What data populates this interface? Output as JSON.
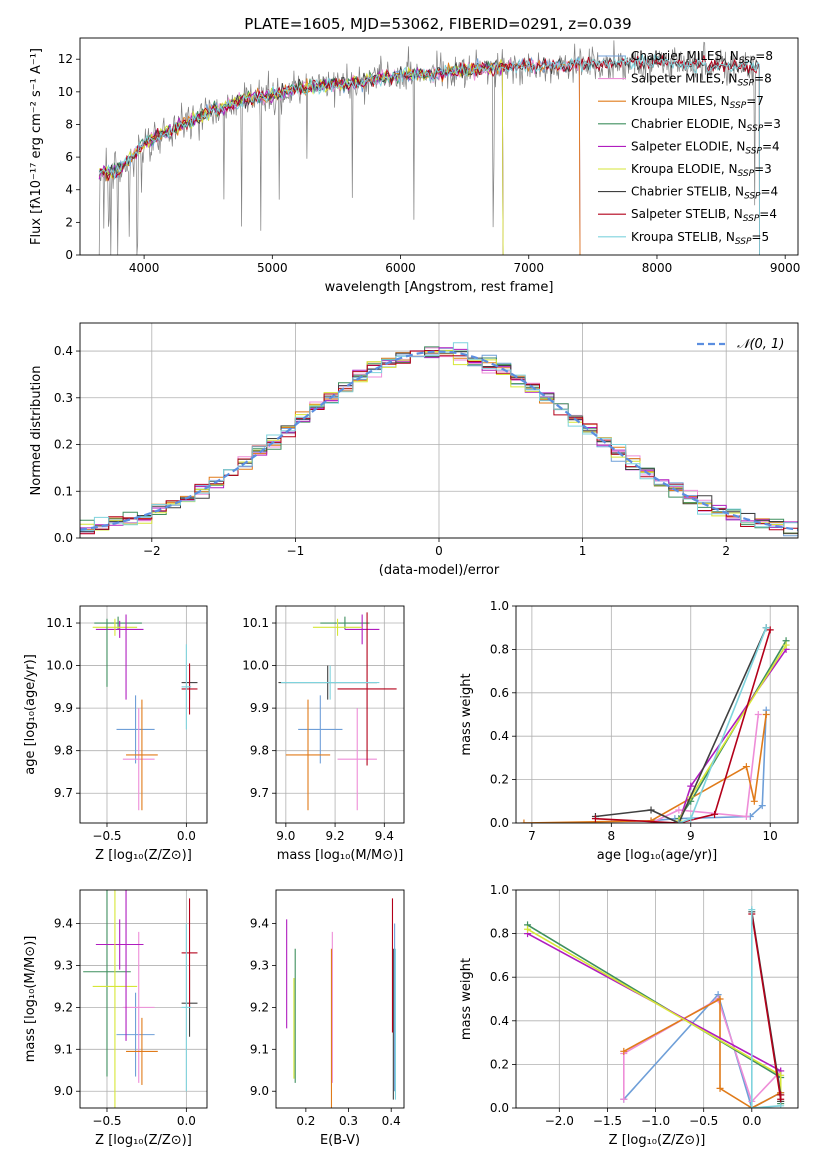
{
  "figure": {
    "title": "PLATE=1605, MJD=53062, FIBERID=0291, z=0.039"
  },
  "chart_data": [
    {
      "id": "spectrum",
      "type": "line",
      "xlabel": "wavelength [Angstrom, rest frame]",
      "ylabel": "Flux [fλ10⁻¹⁷ erg cm⁻² s⁻¹ A⁻¹]",
      "xlim": [
        3500,
        9100
      ],
      "ylim": [
        0,
        13.3
      ],
      "xticks": [
        4000,
        5000,
        6000,
        7000,
        8000,
        9000
      ],
      "yticks": [
        0,
        2,
        4,
        6,
        8,
        10,
        12
      ],
      "grid": false,
      "legend_position": "top-right",
      "data_envelope": {
        "x": [
          3650,
          3800,
          4000,
          4200,
          4400,
          4600,
          4800,
          5000,
          5200,
          5400,
          5600,
          5800,
          6000,
          6200,
          6400,
          6600,
          6800,
          7000,
          7200,
          7400,
          7600,
          7800,
          8000,
          8200,
          8400,
          8600,
          8800
        ],
        "y": [
          5.0,
          5.2,
          6.8,
          7.6,
          8.4,
          9.0,
          9.6,
          9.8,
          10.2,
          10.4,
          10.5,
          10.8,
          11.0,
          11.1,
          11.2,
          11.4,
          11.5,
          11.6,
          11.6,
          11.7,
          11.7,
          11.8,
          11.8,
          11.7,
          11.6,
          11.6,
          11.5
        ]
      },
      "series": [
        {
          "name": "Chabrier MILES, N_SSP=8",
          "label_main": "Chabrier MILES, N",
          "label_sub": "SSP",
          "label_end": "=8",
          "color": "#6f9fd8",
          "x_end": 7400
        },
        {
          "name": "Salpeter MILES, N_SSP=8",
          "label_main": "Salpeter MILES, N",
          "label_sub": "SSP",
          "label_end": "=8",
          "color": "#ee8ed8",
          "x_end": 7400
        },
        {
          "name": "Kroupa MILES, N_SSP=7",
          "label_main": "Kroupa MILES, N",
          "label_sub": "SSP",
          "label_end": "=7",
          "color": "#e07b1a",
          "x_end": 7400
        },
        {
          "name": "Chabrier ELODIE, N_SSP=3",
          "label_main": "Chabrier ELODIE, N",
          "label_sub": "SSP",
          "label_end": "=3",
          "color": "#3f8f5f",
          "x_end": 6800
        },
        {
          "name": "Salpeter ELODIE, N_SSP=4",
          "label_main": "Salpeter ELODIE, N",
          "label_sub": "SSP",
          "label_end": "=4",
          "color": "#b01dbf",
          "x_end": 6800
        },
        {
          "name": "Kroupa ELODIE, N_SSP=3",
          "label_main": "Kroupa ELODIE, N",
          "label_sub": "SSP",
          "label_end": "=3",
          "color": "#d6e637",
          "x_end": 6800
        },
        {
          "name": "Chabrier STELIB, N_SSP=4",
          "label_main": "Chabrier STELIB, N",
          "label_sub": "SSP",
          "label_end": "=4",
          "color": "#404040",
          "x_end": 8800
        },
        {
          "name": "Salpeter STELIB, N_SSP=4",
          "label_main": "Salpeter STELIB, N",
          "label_sub": "SSP",
          "label_end": "=4",
          "color": "#b3001a",
          "x_end": 8800
        },
        {
          "name": "Kroupa STELIB, N_SSP=5",
          "label_main": "Kroupa STELIB, N",
          "label_sub": "SSP",
          "label_end": "=5",
          "color": "#7fd3dd",
          "x_end": 8800
        }
      ]
    },
    {
      "id": "residuals",
      "type": "line",
      "xlabel": "(data-model)/error",
      "ylabel": "Normed distribution",
      "xlim": [
        -2.5,
        2.5
      ],
      "ylim": [
        0,
        0.46
      ],
      "xticks": [
        -2,
        -1,
        0,
        1,
        2
      ],
      "xtick_labels": [
        "−2",
        "−1",
        "0",
        "1",
        "2"
      ],
      "yticks": [
        0.0,
        0.1,
        0.2,
        0.3,
        0.4
      ],
      "ytick_labels": [
        "0.0",
        "0.1",
        "0.2",
        "0.3",
        "0.4"
      ],
      "grid": true,
      "legend_position": "top-right",
      "legend_label": "𝒩(0, 1)",
      "gaussian": {
        "mean": 0,
        "sigma": 1,
        "color": "#5b8ee0"
      },
      "bin_width": 0.1
    },
    {
      "id": "age-vs-Z",
      "type": "scatter",
      "xlabel": "Z [log₁₀(Z/Z⊙)]",
      "ylabel": "age  [log₁₀(age/yr)]",
      "xlim": [
        -0.67,
        0.13
      ],
      "ylim": [
        9.63,
        10.14
      ],
      "xticks": [
        -0.5,
        0.0
      ],
      "xtick_labels": [
        "−0.5",
        "0.0"
      ],
      "yticks": [
        9.7,
        9.8,
        9.9,
        10.0,
        10.1
      ],
      "ytick_labels": [
        "9.7",
        "9.8",
        "9.9",
        "10.0",
        "10.1"
      ],
      "grid": true,
      "points": [
        {
          "c": 0,
          "x": -0.32,
          "y": 9.85,
          "ex": 0.12,
          "ey": 0.08
        },
        {
          "c": 1,
          "x": -0.3,
          "y": 9.78,
          "ex": 0.1,
          "ey": 0.12
        },
        {
          "c": 2,
          "x": -0.28,
          "y": 9.79,
          "ex": 0.1,
          "ey": 0.13
        },
        {
          "c": 3,
          "x": -0.43,
          "y": 10.1,
          "ex": 0.15,
          "ey": 0.015
        },
        {
          "c": 4,
          "x": -0.42,
          "y": 10.085,
          "ex": 0.15,
          "ey": 0.02
        },
        {
          "c": 5,
          "x": -0.45,
          "y": 10.09,
          "ex": 0.14,
          "ey": 0.02
        },
        {
          "c": 6,
          "x": 0.02,
          "y": 9.96,
          "ex": 0.05,
          "ey": 0.04
        },
        {
          "c": 7,
          "x": 0.02,
          "y": 9.945,
          "ex": 0.05,
          "ey": 0.06
        },
        {
          "c": 8,
          "x": 0.0,
          "y": 9.95,
          "ex": 0.03,
          "ey": 0.1
        },
        {
          "c": 3,
          "x": -0.5,
          "y": 10.03,
          "ex": 0.0,
          "ey": 0.08
        },
        {
          "c": 4,
          "x": -0.38,
          "y": 10.02,
          "ex": 0.0,
          "ey": 0.1
        }
      ]
    },
    {
      "id": "age-vs-mass",
      "type": "scatter",
      "xlabel": "mass [log₁₀(M/M⊙)]",
      "ylabel": "",
      "xlim": [
        8.96,
        9.48
      ],
      "ylim": [
        9.63,
        10.14
      ],
      "xticks": [
        9.0,
        9.2,
        9.4
      ],
      "xtick_labels": [
        "9.0",
        "9.2",
        "9.4"
      ],
      "yticks": [
        9.7,
        9.8,
        9.9,
        10.0,
        10.1
      ],
      "ytick_labels": [
        "9.7",
        "9.8",
        "9.9",
        "10.0",
        "10.1"
      ],
      "grid": true,
      "points": [
        {
          "c": 0,
          "x": 9.14,
          "y": 9.85,
          "ex": 0.09,
          "ey": 0.08
        },
        {
          "c": 1,
          "x": 9.29,
          "y": 9.78,
          "ex": 0.08,
          "ey": 0.12
        },
        {
          "c": 2,
          "x": 9.09,
          "y": 9.79,
          "ex": 0.09,
          "ey": 0.13
        },
        {
          "c": 3,
          "x": 9.24,
          "y": 10.1,
          "ex": 0.1,
          "ey": 0.015
        },
        {
          "c": 4,
          "x": 9.31,
          "y": 10.085,
          "ex": 0.07,
          "ey": 0.035
        },
        {
          "c": 5,
          "x": 9.21,
          "y": 10.09,
          "ex": 0.1,
          "ey": 0.02
        },
        {
          "c": 6,
          "x": 9.17,
          "y": 9.96,
          "ex": 0.2,
          "ey": 0.04
        },
        {
          "c": 7,
          "x": 9.33,
          "y": 9.945,
          "ex": 0.12,
          "ey": 0.18
        },
        {
          "c": 8,
          "x": 9.18,
          "y": 9.96,
          "ex": 0.2,
          "ey": 0.04
        }
      ]
    },
    {
      "id": "mass-weight-vs-age",
      "type": "line",
      "xlabel": "age  [log₁₀(age/yr)]",
      "ylabel": "mass weight",
      "xlim": [
        6.8,
        10.35
      ],
      "ylim": [
        0,
        1.0
      ],
      "xticks": [
        7,
        8,
        9,
        10
      ],
      "xtick_labels": [
        "7",
        "8",
        "9",
        "10"
      ],
      "yticks": [
        0.0,
        0.2,
        0.4,
        0.6,
        0.8,
        1.0
      ],
      "ytick_labels": [
        "0.0",
        "0.2",
        "0.4",
        "0.6",
        "0.8",
        "1.0"
      ],
      "grid": true,
      "series": [
        {
          "c": 0,
          "x": [
            8.5,
            8.8,
            9.75,
            9.9,
            9.95
          ],
          "y": [
            0.01,
            0.02,
            0.03,
            0.08,
            0.52
          ]
        },
        {
          "c": 1,
          "x": [
            8.5,
            8.85,
            9.7,
            9.85
          ],
          "y": [
            0.0,
            0.06,
            0.03,
            0.5
          ]
        },
        {
          "c": 2,
          "x": [
            6.9,
            8.5,
            9.7,
            9.8,
            9.95
          ],
          "y": [
            0.0,
            0.01,
            0.26,
            0.1,
            0.5
          ]
        },
        {
          "c": 3,
          "x": [
            8.85,
            9.0,
            10.2
          ],
          "y": [
            0.02,
            0.1,
            0.84
          ]
        },
        {
          "c": 4,
          "x": [
            8.85,
            9.0,
            10.2
          ],
          "y": [
            0.0,
            0.17,
            0.8
          ]
        },
        {
          "c": 5,
          "x": [
            8.85,
            9.0,
            10.2
          ],
          "y": [
            0.01,
            0.12,
            0.82
          ]
        },
        {
          "c": 6,
          "x": [
            7.8,
            8.5,
            8.85,
            9.95
          ],
          "y": [
            0.03,
            0.06,
            0.0,
            0.9
          ]
        },
        {
          "c": 7,
          "x": [
            7.8,
            8.85,
            9.3,
            10.0
          ],
          "y": [
            0.02,
            0.0,
            0.04,
            0.89
          ]
        },
        {
          "c": 8,
          "x": [
            8.85,
            9.0,
            9.95
          ],
          "y": [
            0.0,
            0.02,
            0.9
          ]
        }
      ]
    },
    {
      "id": "mass-vs-Z",
      "type": "scatter",
      "xlabel": "Z [log₁₀(Z/Z⊙)]",
      "ylabel": "mass [log₁₀(M/M⊙)]",
      "xlim": [
        -0.67,
        0.13
      ],
      "ylim": [
        8.96,
        9.48
      ],
      "xticks": [
        -0.5,
        0.0
      ],
      "xtick_labels": [
        "−0.5",
        "0.0"
      ],
      "yticks": [
        9.0,
        9.1,
        9.2,
        9.3,
        9.4
      ],
      "ytick_labels": [
        "9.0",
        "9.1",
        "9.2",
        "9.3",
        "9.4"
      ],
      "grid": true,
      "points": [
        {
          "c": 0,
          "x": -0.32,
          "y": 9.135,
          "ex": 0.12,
          "ey": 0.1
        },
        {
          "c": 1,
          "x": -0.3,
          "y": 9.2,
          "ex": 0.1,
          "ey": 0.18
        },
        {
          "c": 2,
          "x": -0.28,
          "y": 9.095,
          "ex": 0.1,
          "ey": 0.08
        },
        {
          "c": 3,
          "x": -0.5,
          "y": 9.285,
          "ex": 0.15,
          "ey": 0.25
        },
        {
          "c": 4,
          "x": -0.42,
          "y": 9.35,
          "ex": 0.15,
          "ey": 0.06
        },
        {
          "c": 5,
          "x": -0.45,
          "y": 9.25,
          "ex": 0.14,
          "ey": 0.32
        },
        {
          "c": 6,
          "x": 0.02,
          "y": 9.21,
          "ex": 0.05,
          "ey": 0.08
        },
        {
          "c": 7,
          "x": 0.02,
          "y": 9.33,
          "ex": 0.05,
          "ey": 0.13
        },
        {
          "c": 8,
          "x": 0.0,
          "y": 9.2,
          "ex": 0.03,
          "ey": 0.2
        },
        {
          "c": 4,
          "x": -0.38,
          "y": 9.35,
          "ex": 0.0,
          "ey": 0.23
        }
      ]
    },
    {
      "id": "mass-vs-ebv",
      "type": "scatter",
      "xlabel": "E(B-V)",
      "ylabel": "",
      "xlim": [
        0.13,
        0.43
      ],
      "ylim": [
        8.96,
        9.48
      ],
      "xticks": [
        0.2,
        0.3,
        0.4
      ],
      "xtick_labels": [
        "0.2",
        "0.3",
        "0.4"
      ],
      "yticks": [
        9.0,
        9.1,
        9.2,
        9.3,
        9.4
      ],
      "ytick_labels": [
        "9.0",
        "9.1",
        "9.2",
        "9.3",
        "9.4"
      ],
      "grid": false,
      "points": [
        {
          "c": 0,
          "x": 0.408,
          "y": 9.2,
          "ex": 0.0,
          "ey": 0.2
        },
        {
          "c": 1,
          "x": 0.262,
          "y": 9.2,
          "ex": 0.0,
          "ey": 0.18
        },
        {
          "c": 2,
          "x": 0.26,
          "y": 9.14,
          "ex": 0.0,
          "ey": 0.2
        },
        {
          "c": 3,
          "x": 0.175,
          "y": 9.18,
          "ex": 0.0,
          "ey": 0.16
        },
        {
          "c": 4,
          "x": 0.155,
          "y": 9.28,
          "ex": 0.0,
          "ey": 0.13
        },
        {
          "c": 5,
          "x": 0.172,
          "y": 9.15,
          "ex": 0.0,
          "ey": 0.12
        },
        {
          "c": 6,
          "x": 0.405,
          "y": 9.16,
          "ex": 0.0,
          "ey": 0.18
        },
        {
          "c": 7,
          "x": 0.403,
          "y": 9.3,
          "ex": 0.0,
          "ey": 0.16
        },
        {
          "c": 8,
          "x": 0.41,
          "y": 9.16,
          "ex": 0.0,
          "ey": 0.18
        }
      ]
    },
    {
      "id": "mass-weight-vs-Z",
      "type": "line",
      "xlabel": "Z [log₁₀(Z/Z⊙)]",
      "ylabel": "mass weight",
      "xlim": [
        -2.45,
        0.48
      ],
      "ylim": [
        0,
        1.0
      ],
      "xticks": [
        -2.0,
        -1.5,
        -1.0,
        -0.5,
        0.0
      ],
      "xtick_labels": [
        "−2.0",
        "−1.5",
        "−1.0",
        "−0.5",
        "0.0"
      ],
      "yticks": [
        0.0,
        0.2,
        0.4,
        0.6,
        0.8,
        1.0
      ],
      "ytick_labels": [
        "0.0",
        "0.2",
        "0.4",
        "0.6",
        "0.8",
        "1.0"
      ],
      "grid": true,
      "series": [
        {
          "c": 0,
          "x": [
            -1.33,
            -0.35,
            0.0,
            0.3,
            0.3
          ],
          "y": [
            0.04,
            0.52,
            0.0,
            0.07,
            0.06
          ]
        },
        {
          "c": 1,
          "x": [
            -1.33,
            -1.33,
            -0.35,
            0.0,
            0.3
          ],
          "y": [
            0.04,
            0.25,
            0.5,
            0.03,
            0.17
          ]
        },
        {
          "c": 2,
          "x": [
            -1.33,
            -0.33,
            -0.33,
            0.0,
            0.3
          ],
          "y": [
            0.26,
            0.5,
            0.09,
            0.0,
            0.07
          ]
        },
        {
          "c": 3,
          "x": [
            -2.33,
            0.3,
            0.3
          ],
          "y": [
            0.84,
            0.14,
            0.02
          ]
        },
        {
          "c": 4,
          "x": [
            -2.33,
            0.3,
            0.3
          ],
          "y": [
            0.8,
            0.17,
            0.03
          ]
        },
        {
          "c": 5,
          "x": [
            -2.33,
            0.3,
            0.3
          ],
          "y": [
            0.82,
            0.15,
            0.03
          ]
        },
        {
          "c": 6,
          "x": [
            0.0,
            0.3,
            0.3
          ],
          "y": [
            0.9,
            0.06,
            0.03
          ]
        },
        {
          "c": 7,
          "x": [
            0.0,
            0.3,
            0.3
          ],
          "y": [
            0.89,
            0.04,
            0.06
          ]
        },
        {
          "c": 8,
          "x": [
            0.0,
            0.0,
            0.3
          ],
          "y": [
            0.91,
            0.0,
            0.01
          ]
        }
      ]
    }
  ]
}
